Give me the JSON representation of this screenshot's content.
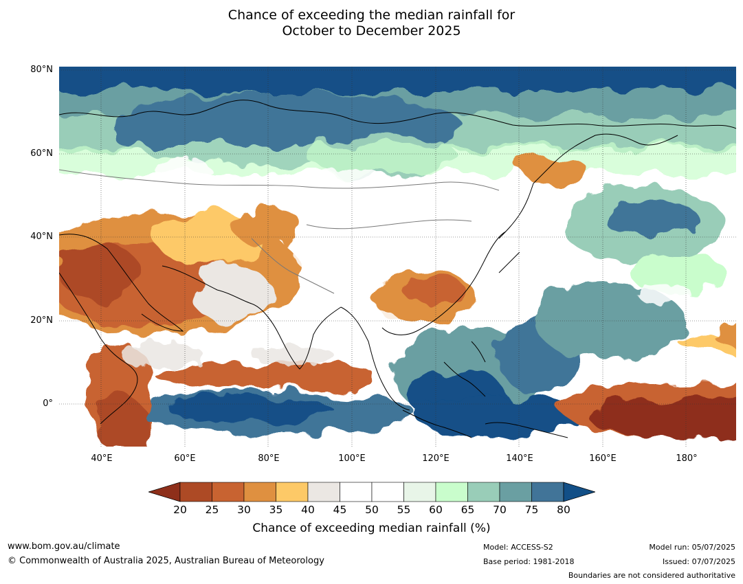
{
  "title": {
    "line1": "Chance of exceeding the median rainfall for",
    "line2": "October to December 2025"
  },
  "map": {
    "latitude_labels": [
      "80°N",
      "60°N",
      "40°N",
      "20°N",
      "0°"
    ],
    "longitude_labels": [
      "40°E",
      "60°E",
      "80°E",
      "100°E",
      "120°E",
      "140°E",
      "160°E",
      "180°"
    ],
    "lat_range": [
      -10,
      80
    ],
    "lon_range": [
      30,
      192
    ],
    "gridlines": true,
    "coastlines": true,
    "country_boundaries": true
  },
  "colorbar": {
    "ticks": [
      "20",
      "25",
      "30",
      "35",
      "40",
      "45",
      "50",
      "55",
      "60",
      "65",
      "70",
      "75",
      "80"
    ],
    "label": "Chance of exceeding median rainfall (%)",
    "under_color": "#8e2f1a",
    "over_color": "#124f87",
    "bin_colors": [
      "#ad4a25",
      "#c86331",
      "#df9040",
      "#fdc967",
      "#ebe7e3",
      "#ffffff",
      "#ffffff",
      "#e8f5e8",
      "#c9fdcc",
      "#99cdb8",
      "#6a9fa2",
      "#417498"
    ]
  },
  "footer": {
    "website": "www.bom.gov.au/climate",
    "copyright": "© Commonwealth of Australia 2025, Australian Bureau of Meteorology",
    "model": "Model: ACCESS-S2",
    "base_period": "Base period: 1981-2018",
    "model_run": "Model run: 05/07/2025",
    "issued": "Issued: 07/07/2025",
    "disclaimer": "Boundaries are not considered authoritative"
  }
}
